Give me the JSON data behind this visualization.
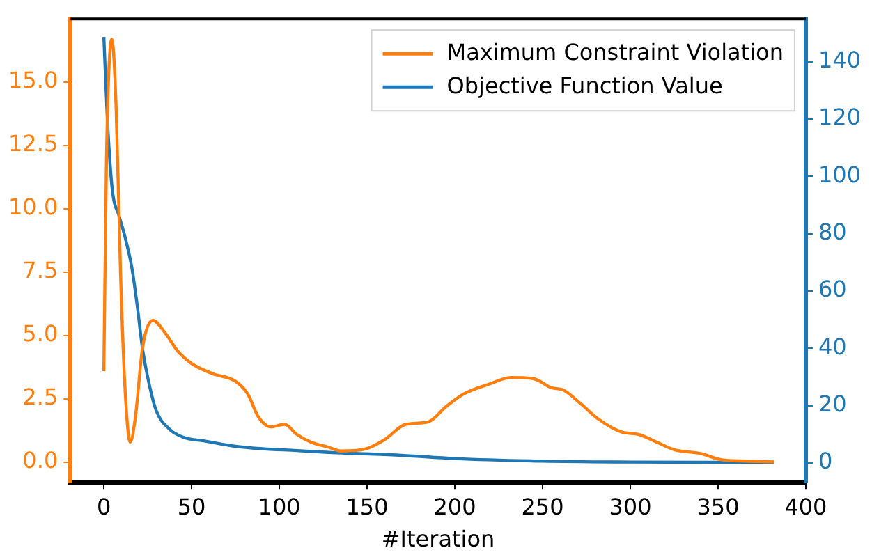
{
  "chart_data": {
    "type": "line",
    "xlabel": "#Iteration",
    "xlim": [
      -19,
      400
    ],
    "xticks": [
      0,
      50,
      100,
      150,
      200,
      250,
      300,
      350,
      400
    ],
    "ylim": [
      -0.8,
      17.5
    ],
    "yticks": [
      {
        "value": 0,
        "label": "0.0"
      },
      {
        "value": 2.5,
        "label": "2.5"
      },
      {
        "value": 5,
        "label": "5.0"
      },
      {
        "value": 7.5,
        "label": "7.5"
      },
      {
        "value": 10,
        "label": "10.0"
      },
      {
        "value": 12.5,
        "label": "12.5"
      },
      {
        "value": 15,
        "label": "15.0"
      }
    ],
    "y2lim": [
      -6.9,
      155
    ],
    "y2ticks": [
      0,
      20,
      40,
      60,
      80,
      100,
      120,
      140
    ],
    "legend": "top right",
    "marker": "none",
    "line_style": "solid",
    "grid": false,
    "series": [
      {
        "name": "Maximum Constraint Violation",
        "color": "#ff7f0e",
        "x": [
          0,
          1.5,
          4.5,
          7,
          9.5,
          12,
          15,
          18,
          22,
          28,
          35,
          42,
          50,
          62,
          75,
          82,
          88,
          95,
          103,
          110,
          118,
          128,
          135,
          150,
          160,
          172,
          185,
          195,
          205,
          220,
          232,
          245,
          255,
          262,
          272,
          282,
          295,
          305,
          315,
          325,
          340,
          352,
          365,
          382
        ],
        "values": [
          3.6,
          12,
          16.7,
          14,
          7.5,
          3,
          0.8,
          1.8,
          4.5,
          5.6,
          5.1,
          4.4,
          3.9,
          3.5,
          3.2,
          2.7,
          1.8,
          1.4,
          1.5,
          1.1,
          0.8,
          0.6,
          0.45,
          0.55,
          0.9,
          1.5,
          1.6,
          2.2,
          2.7,
          3.1,
          3.35,
          3.3,
          2.95,
          2.85,
          2.3,
          1.7,
          1.2,
          1.1,
          0.8,
          0.5,
          0.35,
          0.1,
          0.05,
          0.02
        ]
      },
      {
        "name": "Objective Function Value",
        "color": "#1f77b4",
        "x": [
          0,
          2,
          4.7,
          8.8,
          12,
          16,
          19,
          22,
          26,
          30,
          37,
          45,
          58,
          75,
          89,
          110,
          130,
          168,
          200,
          250,
          300,
          350,
          382
        ],
        "values": [
          148.7,
          120,
          96,
          86,
          79,
          68,
          55,
          40,
          27,
          18,
          12,
          9,
          7.6,
          5.8,
          5,
          4.3,
          3.6,
          2.7,
          1.5,
          0.6,
          0.3,
          0.2,
          0.2
        ],
        "axis": "y2"
      }
    ]
  }
}
